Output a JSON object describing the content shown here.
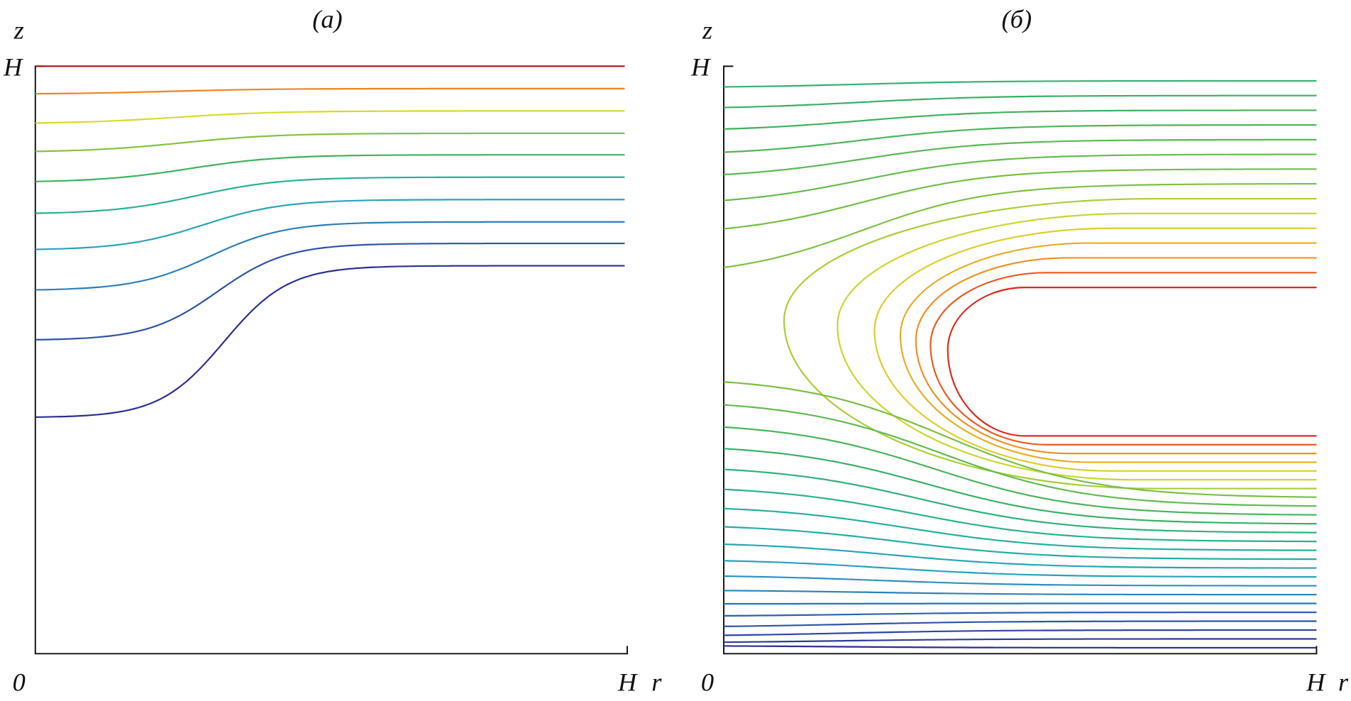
{
  "panels": [
    {
      "label": "(а)",
      "y_axis_label": "z",
      "y_max_label": "H",
      "origin_label": "0",
      "x_max_label": "H",
      "x_axis_label": "r"
    },
    {
      "label": "(б)",
      "y_axis_label": "z",
      "y_max_label": "H",
      "origin_label": "0",
      "x_max_label": "H",
      "x_axis_label": "r"
    }
  ]
}
